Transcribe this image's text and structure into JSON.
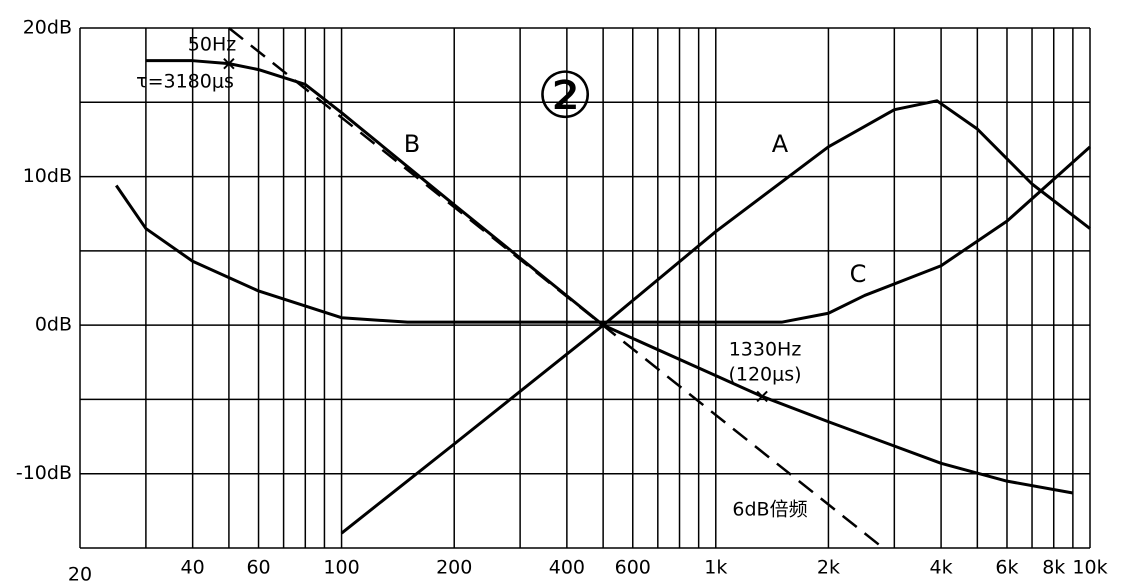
{
  "chart_data": {
    "type": "line",
    "title": "②",
    "xscale": "log",
    "color": "#000000",
    "xlim": [
      20,
      10000
    ],
    "ylim": [
      -15,
      20
    ],
    "xticks": [
      20,
      40,
      60,
      100,
      200,
      400,
      600,
      {
        "value": 1000,
        "label": "1k"
      },
      {
        "value": 2000,
        "label": "2k"
      },
      {
        "value": 4000,
        "label": "4k"
      },
      {
        "value": 6000,
        "label": "6k"
      },
      {
        "value": 8000,
        "label": "8k"
      },
      {
        "value": 10000,
        "label": "10k"
      }
    ],
    "yticks": [
      {
        "value": 20,
        "label": "20dB"
      },
      {
        "value": 10,
        "label": "10dB"
      },
      {
        "value": 0,
        "label": "0dB"
      },
      {
        "value": -10,
        "label": "-10dB"
      }
    ],
    "xgrid": [
      20,
      30,
      40,
      50,
      60,
      70,
      80,
      90,
      100,
      200,
      300,
      400,
      500,
      600,
      700,
      800,
      900,
      1000,
      2000,
      3000,
      4000,
      5000,
      6000,
      7000,
      8000,
      9000,
      10000
    ],
    "ygrid": [
      -15,
      -10,
      -5,
      0,
      5,
      10,
      15,
      20
    ],
    "series": [
      {
        "name": "A",
        "dashed": false,
        "x": [
          100,
          200,
          500,
          1000,
          2000,
          3000,
          3900,
          5000,
          7000,
          10000
        ],
        "values": [
          -14,
          -8,
          0,
          6.3,
          12,
          14.5,
          15.1,
          13.2,
          9.5,
          6.5
        ]
      },
      {
        "name": "B",
        "dashed": false,
        "x": [
          30,
          40,
          50,
          60,
          80,
          100,
          200,
          500,
          1000,
          1330,
          2000,
          4000,
          6000,
          9000
        ],
        "values": [
          17.8,
          17.8,
          17.6,
          17.2,
          16.2,
          14.3,
          8.1,
          0,
          -3.4,
          -4.8,
          -6.5,
          -9.3,
          -10.5,
          -11.3
        ]
      },
      {
        "name": "C",
        "dashed": false,
        "x": [
          25,
          30,
          40,
          60,
          100,
          150,
          500,
          1500,
          2000,
          2500,
          4000,
          6000,
          10000
        ],
        "values": [
          9.4,
          6.5,
          4.3,
          2.3,
          0.5,
          0.2,
          0.2,
          0.2,
          0.8,
          2,
          4,
          7,
          12
        ]
      },
      {
        "name": "6dB倍频",
        "dashed": true,
        "x": [
          50,
          2800
        ],
        "values": [
          20,
          -15
        ]
      }
    ],
    "markers": {
      "x": [
        50,
        1330
      ],
      "values": [
        17.6,
        -4.8
      ]
    },
    "annotations": [
      "50Hz",
      "τ=3180μs",
      "1330Hz",
      "(120μs)"
    ]
  }
}
